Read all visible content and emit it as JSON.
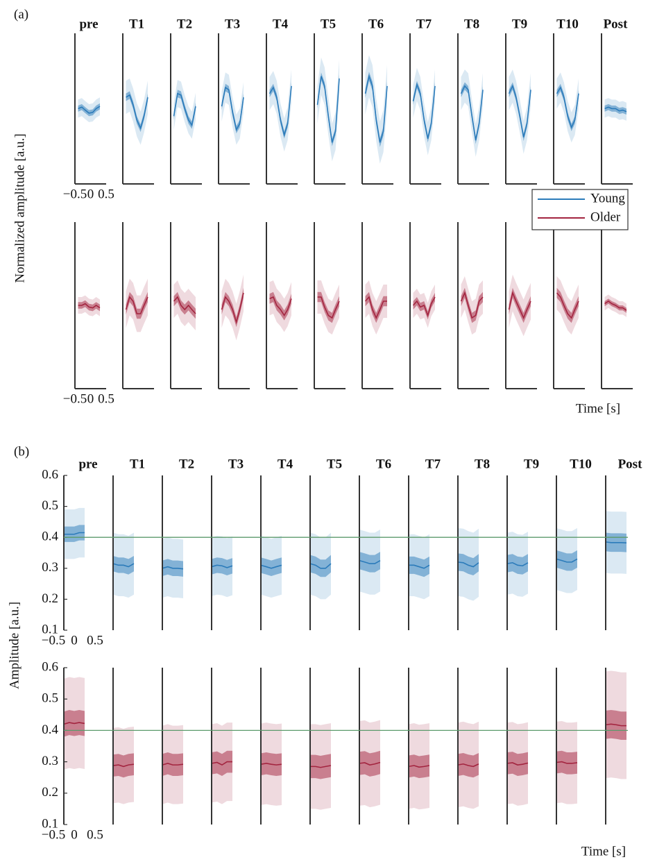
{
  "chart_data": [
    {
      "type": "line",
      "label": "(a)",
      "ylabel": "Normalized amplitude [a.u.]",
      "xlabel": "Time [s]",
      "panels": [
        "pre",
        "T1",
        "T2",
        "T3",
        "T4",
        "T5",
        "T6",
        "T7",
        "T8",
        "T9",
        "T10",
        "Post"
      ],
      "x": [
        -0.4,
        -0.28,
        -0.17,
        -0.05,
        0.07,
        0.18,
        0.3
      ],
      "xlim": [
        -0.5,
        0.5
      ],
      "xticks": [
        {
          "value": -0.5,
          "label": "−0.5"
        },
        0,
        0.5
      ],
      "ylim": [
        -1,
        1
      ],
      "legend": true,
      "series": [
        {
          "name": "Young",
          "color": "#2b7bba",
          "values": [
            [
              0.0,
              0.02,
              -0.02,
              -0.06,
              -0.05,
              0.0,
              0.03
            ],
            [
              0.15,
              0.18,
              0.05,
              -0.15,
              -0.26,
              -0.1,
              0.15
            ],
            [
              -0.1,
              0.2,
              0.18,
              0.0,
              -0.15,
              -0.22,
              0.03
            ],
            [
              0.03,
              0.28,
              0.25,
              -0.05,
              -0.28,
              -0.2,
              0.15
            ],
            [
              0.2,
              0.28,
              0.15,
              -0.15,
              -0.35,
              -0.2,
              0.3
            ],
            [
              0.05,
              0.43,
              0.3,
              -0.1,
              -0.45,
              -0.3,
              0.4
            ],
            [
              0.2,
              0.43,
              0.3,
              -0.15,
              -0.45,
              -0.3,
              0.3
            ],
            [
              0.1,
              0.32,
              0.2,
              -0.15,
              -0.4,
              -0.2,
              0.3
            ],
            [
              0.2,
              0.3,
              0.25,
              -0.1,
              -0.42,
              -0.2,
              0.25
            ],
            [
              0.2,
              0.3,
              0.15,
              -0.1,
              -0.38,
              -0.2,
              0.25
            ],
            [
              0.2,
              0.28,
              0.15,
              -0.1,
              -0.25,
              -0.15,
              0.2
            ],
            [
              0.0,
              0.02,
              0.0,
              0.0,
              -0.03,
              -0.02,
              -0.04
            ]
          ],
          "sem": [
            0.04,
            0.05,
            0.05,
            0.05,
            0.05,
            0.05,
            0.06,
            0.05,
            0.05,
            0.05,
            0.05,
            0.04
          ],
          "sd": [
            0.12,
            0.22,
            0.18,
            0.2,
            0.22,
            0.25,
            0.28,
            0.22,
            0.22,
            0.22,
            0.2,
            0.12
          ]
        },
        {
          "name": "Older",
          "color": "#a3243f",
          "values": [
            [
              0.0,
              0.0,
              0.02,
              -0.02,
              -0.03,
              0.0,
              -0.03
            ],
            [
              -0.05,
              0.1,
              0.05,
              -0.1,
              -0.1,
              0.0,
              0.1
            ],
            [
              0.05,
              0.1,
              0.0,
              -0.05,
              0.0,
              -0.05,
              -0.1
            ],
            [
              -0.05,
              0.1,
              0.05,
              -0.05,
              -0.2,
              -0.05,
              0.15
            ],
            [
              0.08,
              0.1,
              0.0,
              -0.05,
              -0.12,
              -0.05,
              0.08
            ],
            [
              0.1,
              0.1,
              -0.02,
              -0.12,
              -0.15,
              -0.05,
              0.05
            ],
            [
              0.05,
              0.1,
              -0.05,
              -0.15,
              -0.05,
              0.05,
              0.05
            ],
            [
              0.0,
              0.05,
              -0.02,
              0.0,
              -0.12,
              0.02,
              0.1
            ],
            [
              0.05,
              0.15,
              0.0,
              -0.15,
              -0.12,
              0.05,
              0.1
            ],
            [
              -0.05,
              0.15,
              0.05,
              -0.05,
              -0.15,
              -0.05,
              0.05
            ],
            [
              0.15,
              0.1,
              0.0,
              -0.1,
              -0.15,
              -0.05,
              0.05
            ],
            [
              0.02,
              0.05,
              0.02,
              0.0,
              -0.03,
              -0.03,
              -0.06
            ]
          ],
          "sem": [
            0.04,
            0.06,
            0.06,
            0.06,
            0.06,
            0.06,
            0.06,
            0.05,
            0.06,
            0.06,
            0.06,
            0.03
          ],
          "sd": [
            0.1,
            0.22,
            0.2,
            0.22,
            0.2,
            0.2,
            0.2,
            0.15,
            0.2,
            0.22,
            0.2,
            0.08
          ]
        }
      ]
    },
    {
      "type": "line",
      "label": "(b)",
      "ylabel": "Amplitude [a.u.]",
      "xlabel": "Time [s]",
      "panels": [
        "pre",
        "T1",
        "T2",
        "T3",
        "T4",
        "T5",
        "T6",
        "T7",
        "T8",
        "T9",
        "T10",
        "Post"
      ],
      "x": [
        -0.25,
        -0.12,
        0,
        0.12,
        0.25
      ],
      "xlim": [
        -0.5,
        0.5
      ],
      "xticks": [
        {
          "value": -0.5,
          "label": "−0.5"
        },
        0,
        0.5
      ],
      "ylim": [
        0.1,
        0.6
      ],
      "yticks": [
        0.1,
        0.2,
        0.3,
        0.4,
        0.5,
        0.6
      ],
      "reference_value": 0.4,
      "reference_color": "#5b9a6b",
      "series": [
        {
          "color": "#2b7bba",
          "values": [
            [
              0.41,
              0.41,
              0.41,
              0.415,
              0.415
            ],
            [
              0.315,
              0.31,
              0.31,
              0.305,
              0.315
            ],
            [
              0.3,
              0.305,
              0.3,
              0.3,
              0.298
            ],
            [
              0.305,
              0.31,
              0.308,
              0.302,
              0.308
            ],
            [
              0.31,
              0.305,
              0.3,
              0.305,
              0.31
            ],
            [
              0.315,
              0.31,
              0.3,
              0.3,
              0.315
            ],
            [
              0.325,
              0.32,
              0.315,
              0.315,
              0.325
            ],
            [
              0.31,
              0.31,
              0.305,
              0.3,
              0.31
            ],
            [
              0.32,
              0.318,
              0.31,
              0.305,
              0.318
            ],
            [
              0.315,
              0.318,
              0.31,
              0.308,
              0.318
            ],
            [
              0.33,
              0.325,
              0.32,
              0.32,
              0.33
            ],
            [
              0.385,
              0.383,
              0.383,
              0.383,
              0.382
            ]
          ],
          "sem": [
            0.025,
            0.025,
            0.025,
            0.025,
            0.025,
            0.028,
            0.028,
            0.028,
            0.028,
            0.028,
            0.028,
            0.03
          ],
          "sd": [
            0.08,
            0.1,
            0.095,
            0.095,
            0.095,
            0.1,
            0.1,
            0.1,
            0.11,
            0.1,
            0.1,
            0.1
          ]
        },
        {
          "color": "#a3243f",
          "values": [
            [
              0.42,
              0.425,
              0.422,
              0.425,
              0.422
            ],
            [
              0.288,
              0.29,
              0.285,
              0.29,
              0.292
            ],
            [
              0.29,
              0.295,
              0.29,
              0.29,
              0.292
            ],
            [
              0.295,
              0.298,
              0.29,
              0.3,
              0.3
            ],
            [
              0.292,
              0.295,
              0.292,
              0.29,
              0.292
            ],
            [
              0.285,
              0.285,
              0.282,
              0.285,
              0.288
            ],
            [
              0.295,
              0.297,
              0.29,
              0.293,
              0.298
            ],
            [
              0.285,
              0.288,
              0.283,
              0.285,
              0.288
            ],
            [
              0.29,
              0.293,
              0.288,
              0.285,
              0.293
            ],
            [
              0.295,
              0.297,
              0.29,
              0.292,
              0.296
            ],
            [
              0.298,
              0.3,
              0.295,
              0.295,
              0.297
            ],
            [
              0.418,
              0.42,
              0.418,
              0.415,
              0.415
            ]
          ],
          "sem": [
            0.04,
            0.035,
            0.035,
            0.035,
            0.035,
            0.037,
            0.037,
            0.035,
            0.035,
            0.035,
            0.035,
            0.045
          ],
          "sd": [
            0.145,
            0.12,
            0.125,
            0.125,
            0.13,
            0.135,
            0.135,
            0.135,
            0.135,
            0.13,
            0.13,
            0.17
          ]
        }
      ]
    }
  ]
}
